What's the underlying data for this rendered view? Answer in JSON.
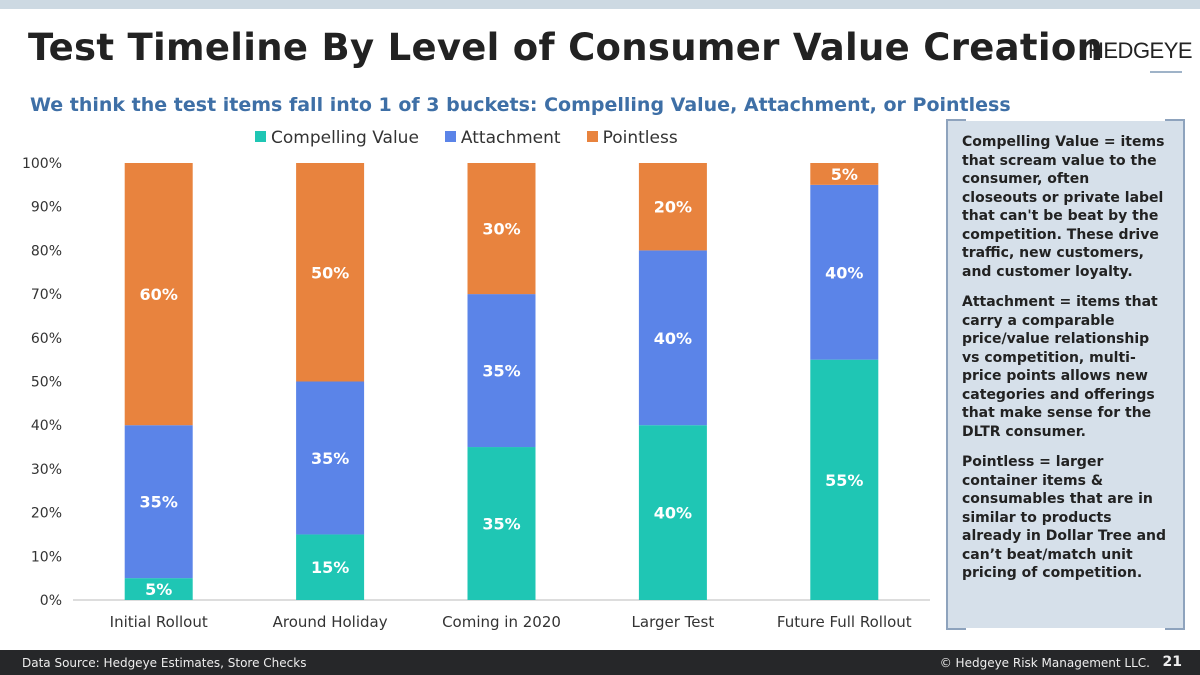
{
  "header": {
    "title": "Test Timeline By Level of Consumer Value Creation",
    "logo": "HEDGEYE",
    "subtitle": "We think the test items fall into 1 of 3 buckets: Compelling Value, Attachment, or Pointless"
  },
  "chart_data": {
    "type": "bar",
    "stacked": true,
    "categories": [
      "Initial Rollout",
      "Around Holiday",
      "Coming in 2020",
      "Larger Test",
      "Future Full Rollout"
    ],
    "series": [
      {
        "name": "Compelling Value",
        "color": "#1fc6b4",
        "values": [
          5,
          15,
          35,
          40,
          55
        ]
      },
      {
        "name": "Attachment",
        "color": "#5b84e8",
        "values": [
          35,
          35,
          35,
          40,
          40
        ]
      },
      {
        "name": "Pointless",
        "color": "#e8833e",
        "values": [
          60,
          50,
          30,
          20,
          5
        ]
      }
    ],
    "ylim": [
      0,
      100
    ],
    "yticks": [
      "0%",
      "10%",
      "20%",
      "30%",
      "40%",
      "50%",
      "60%",
      "70%",
      "80%",
      "90%",
      "100%"
    ],
    "legend": "top",
    "grid": false
  },
  "sidebar": {
    "paragraphs": [
      "Compelling Value = items that scream value to the consumer, often closeouts or private label that can't be beat by the competition.  These drive traffic, new customers, and customer loyalty.",
      "Attachment = items that carry a comparable price/value relationship vs competition, multi-price points allows new categories and offerings that make sense for the DLTR consumer.",
      "Pointless = larger container items & consumables that are in similar to products already in Dollar Tree and can’t beat/match unit pricing of competition."
    ]
  },
  "footer": {
    "source": "Data Source: Hedgeye Estimates, Store Checks",
    "copyright": "© Hedgeye Risk Management LLC.",
    "page": "21"
  }
}
